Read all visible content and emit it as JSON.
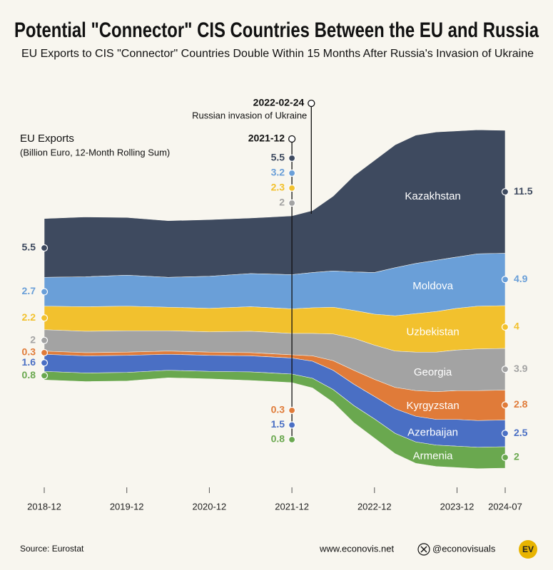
{
  "chart_data": {
    "type": "area",
    "title": "Potential \"Connector\" CIS Countries Between the EU and Russia",
    "subtitle": "EU Exports to CIS \"Connector\" Countries Double Within 15 Months After Russia's Invasion of Ukraine",
    "y_label": "EU Exports",
    "y_sublabel": "(Billion Euro, 12-Month Rolling Sum)",
    "x": [
      "2018-12",
      "2019-06",
      "2019-12",
      "2020-06",
      "2020-12",
      "2021-06",
      "2021-12",
      "2022-03",
      "2022-06",
      "2022-09",
      "2022-12",
      "2023-03",
      "2023-06",
      "2023-09",
      "2023-12",
      "2024-03",
      "2024-07"
    ],
    "xticks": [
      "2018-12",
      "2019-12",
      "2020-12",
      "2021-12",
      "2022-12",
      "2023-12",
      "2024-07"
    ],
    "series": [
      {
        "name": "Kazakhstan",
        "color": "#3e4a5f",
        "values": [
          5.5,
          5.6,
          5.4,
          5.3,
          5.3,
          5.2,
          5.5,
          5.8,
          7.0,
          9.0,
          10.5,
          11.5,
          12.0,
          12.0,
          11.8,
          11.6,
          11.5
        ]
      },
      {
        "name": "Moldova",
        "color": "#6a9fd8",
        "values": [
          2.7,
          2.8,
          2.9,
          2.8,
          3.0,
          3.1,
          3.2,
          3.3,
          3.4,
          3.6,
          3.9,
          4.5,
          4.7,
          4.8,
          4.8,
          4.9,
          4.9
        ]
      },
      {
        "name": "Uzbekistan",
        "color": "#f2c12e",
        "values": [
          2.2,
          2.3,
          2.3,
          2.2,
          2.2,
          2.3,
          2.3,
          2.4,
          2.5,
          2.6,
          2.9,
          3.3,
          3.6,
          3.8,
          3.9,
          4.0,
          4.0
        ]
      },
      {
        "name": "Georgia",
        "color": "#a3a3a3",
        "values": [
          2.0,
          2.0,
          2.0,
          1.9,
          1.9,
          2.0,
          2.0,
          2.1,
          2.5,
          3.0,
          3.2,
          3.4,
          3.6,
          3.7,
          3.8,
          3.9,
          3.9
        ]
      },
      {
        "name": "Kyrgyzstan",
        "color": "#e07b39",
        "values": [
          0.3,
          0.3,
          0.3,
          0.3,
          0.3,
          0.3,
          0.3,
          0.5,
          0.9,
          1.3,
          1.6,
          2.0,
          2.4,
          2.6,
          2.7,
          2.8,
          2.8
        ]
      },
      {
        "name": "Azerbaijan",
        "color": "#4a6fc4",
        "values": [
          1.6,
          1.6,
          1.6,
          1.5,
          1.5,
          1.5,
          1.5,
          1.6,
          1.8,
          2.0,
          2.1,
          2.3,
          2.4,
          2.4,
          2.5,
          2.5,
          2.5
        ]
      },
      {
        "name": "Armenia",
        "color": "#6aa84f",
        "values": [
          0.8,
          0.8,
          0.8,
          0.7,
          0.7,
          0.8,
          0.8,
          0.9,
          1.2,
          1.6,
          1.8,
          1.9,
          2.0,
          2.0,
          2.0,
          2.0,
          2.0
        ]
      }
    ],
    "annotations": [
      {
        "x": "2021-12",
        "label": "2021-12"
      },
      {
        "x": "2022-02-24",
        "label": "2022-02-24",
        "text": "Russian invasion of Ukraine"
      }
    ]
  },
  "footer": {
    "source": "Source: Eurostat",
    "website": "www.econovis.net",
    "handle": "@econovisuals",
    "logo": "EV"
  }
}
